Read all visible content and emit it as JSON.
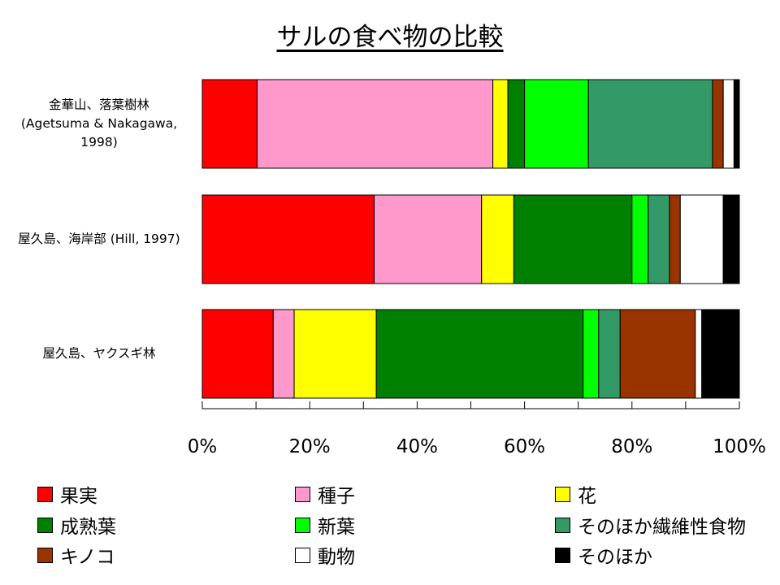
{
  "chart_data": {
    "type": "bar",
    "orientation": "horizontal",
    "stacked": "percent",
    "title": "サルの食べ物の比較",
    "xlim": [
      0,
      100
    ],
    "xticks": [
      "0%",
      "20%",
      "40%",
      "60%",
      "80%",
      "100%"
    ],
    "categories": [
      "金華山、落葉樹林\n(Agetsuma & Nakagawa,\n1998)",
      "屋久島、海岸部 (Hill, 1997)",
      "屋久島、ヤクスギ林"
    ],
    "series": [
      {
        "name": "果実",
        "color": "#FF0000",
        "values": [
          10.2,
          32.0,
          13.2
        ]
      },
      {
        "name": "種子",
        "color": "#FF99CC",
        "values": [
          43.9,
          20.0,
          3.9
        ]
      },
      {
        "name": "花",
        "color": "#FFFF00",
        "values": [
          2.8,
          6.0,
          15.3
        ]
      },
      {
        "name": "成熟葉",
        "color": "#008000",
        "values": [
          3.1,
          22.0,
          38.5
        ]
      },
      {
        "name": "新葉",
        "color": "#00FF00",
        "values": [
          11.9,
          3.0,
          2.9
        ]
      },
      {
        "name": "そのほか繊維性食物",
        "color": "#339966",
        "values": [
          23.1,
          4.0,
          4.0
        ]
      },
      {
        "name": "キノコ",
        "color": "#993300",
        "values": [
          2.0,
          2.0,
          14.0
        ]
      },
      {
        "name": "動物",
        "color": "#FFFFFF",
        "values": [
          2.0,
          8.0,
          1.2
        ]
      },
      {
        "name": "そのほか",
        "color": "#000000",
        "values": [
          1.0,
          3.0,
          7.0
        ]
      }
    ],
    "legend_position": "bottom",
    "grid": false
  }
}
